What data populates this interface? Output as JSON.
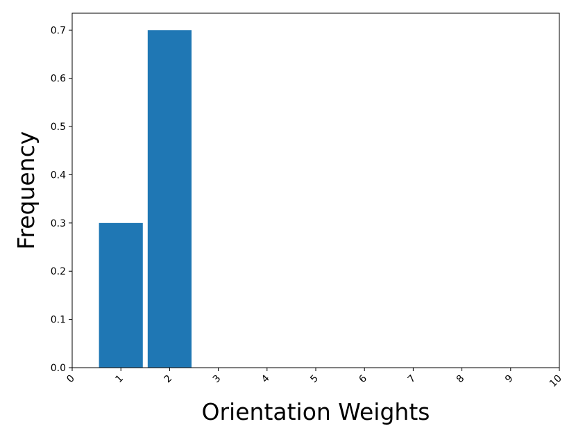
{
  "chart_data": {
    "type": "bar",
    "x": [
      1,
      2
    ],
    "values": [
      0.3,
      0.7
    ],
    "bar_width": 0.9,
    "xlabel": "Orientation Weights",
    "ylabel": "Frequency",
    "xlim": [
      0,
      10
    ],
    "ylim": [
      0,
      0.735
    ],
    "xticks": [
      "0",
      "1",
      "2",
      "3",
      "4",
      "5",
      "6",
      "7",
      "8",
      "9",
      "10"
    ],
    "yticks": [
      "0.0",
      "0.1",
      "0.2",
      "0.3",
      "0.4",
      "0.5",
      "0.6",
      "0.7"
    ],
    "bar_color": "#1f77b4",
    "grid": false,
    "legend": "none"
  }
}
